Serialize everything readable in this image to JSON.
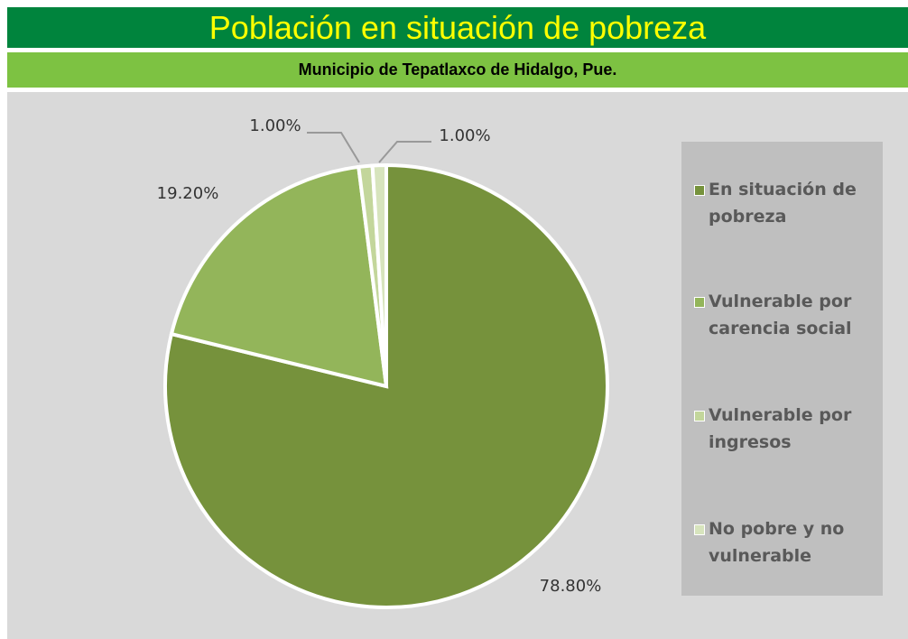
{
  "chart_data": {
    "type": "pie",
    "title": "Población en situación de pobreza",
    "subtitle": "Municipio de Tepatlaxco de Hidalgo, Pue.",
    "categories": [
      "En situación de pobreza",
      "Vulnerable por carencia social",
      "Vulnerable por ingresos",
      "No pobre y no vulnerable"
    ],
    "values": [
      78.8,
      19.2,
      1.0,
      1.0
    ],
    "value_labels": [
      "78.80%",
      "19.20%",
      "1.00%",
      "1.00%"
    ],
    "colors": [
      "#76923c",
      "#93b55a",
      "#c3d69b",
      "#d7e4bd"
    ],
    "legend": "right"
  }
}
